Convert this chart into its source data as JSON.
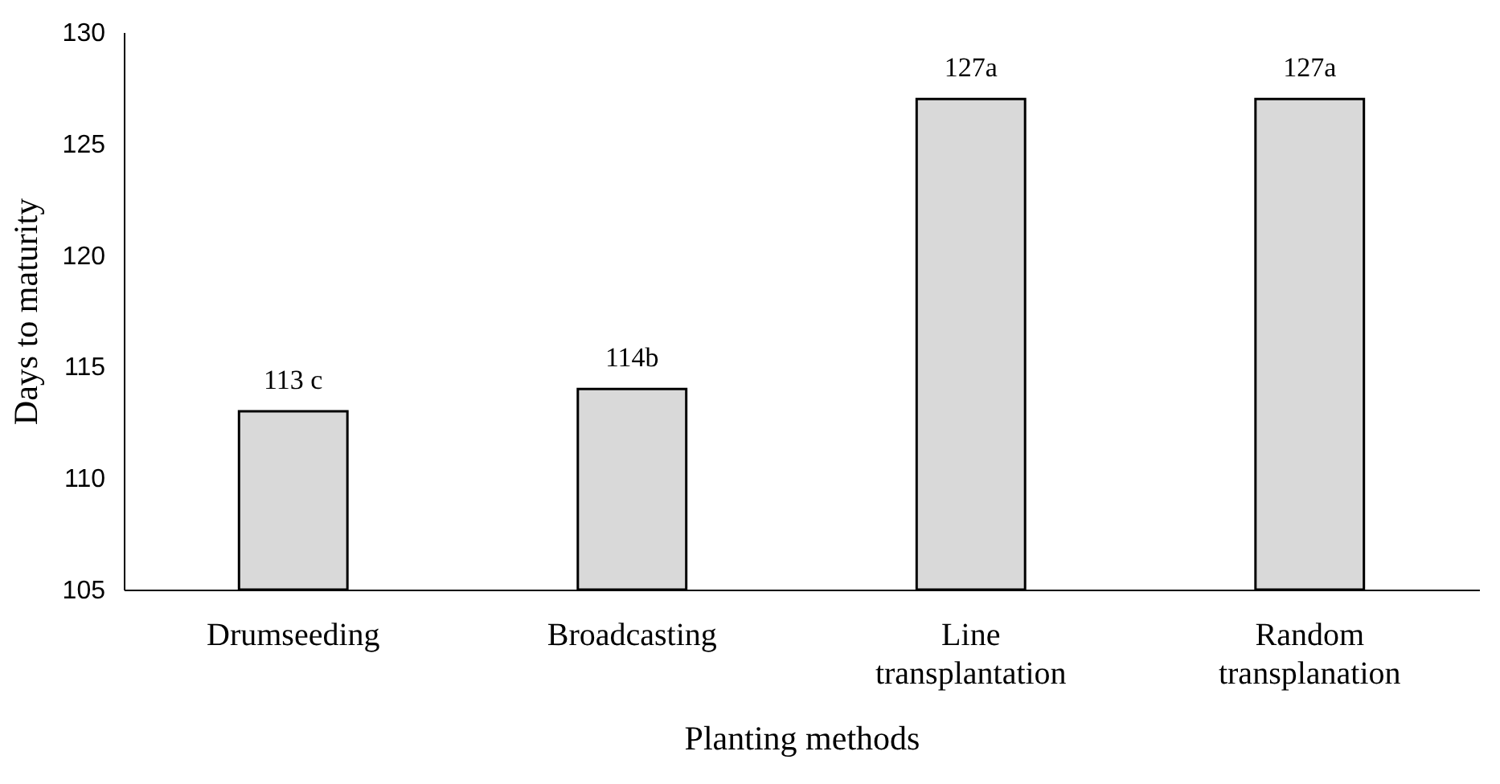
{
  "chart_data": {
    "type": "bar",
    "xlabel": "Planting methods",
    "ylabel": "Days to maturity",
    "categories": [
      "Drumseeding",
      "Broadcasting",
      "Line transplantation",
      "Random transplanation"
    ],
    "values": [
      113,
      114,
      127,
      127
    ],
    "color": "#d9d9d9",
    "value_labels": [
      "113 c",
      "114b",
      "127a",
      "127a"
    ],
    "ylim": [
      105,
      130
    ],
    "yticks": [
      105,
      110,
      115,
      120,
      125,
      130
    ],
    "grid": false
  }
}
